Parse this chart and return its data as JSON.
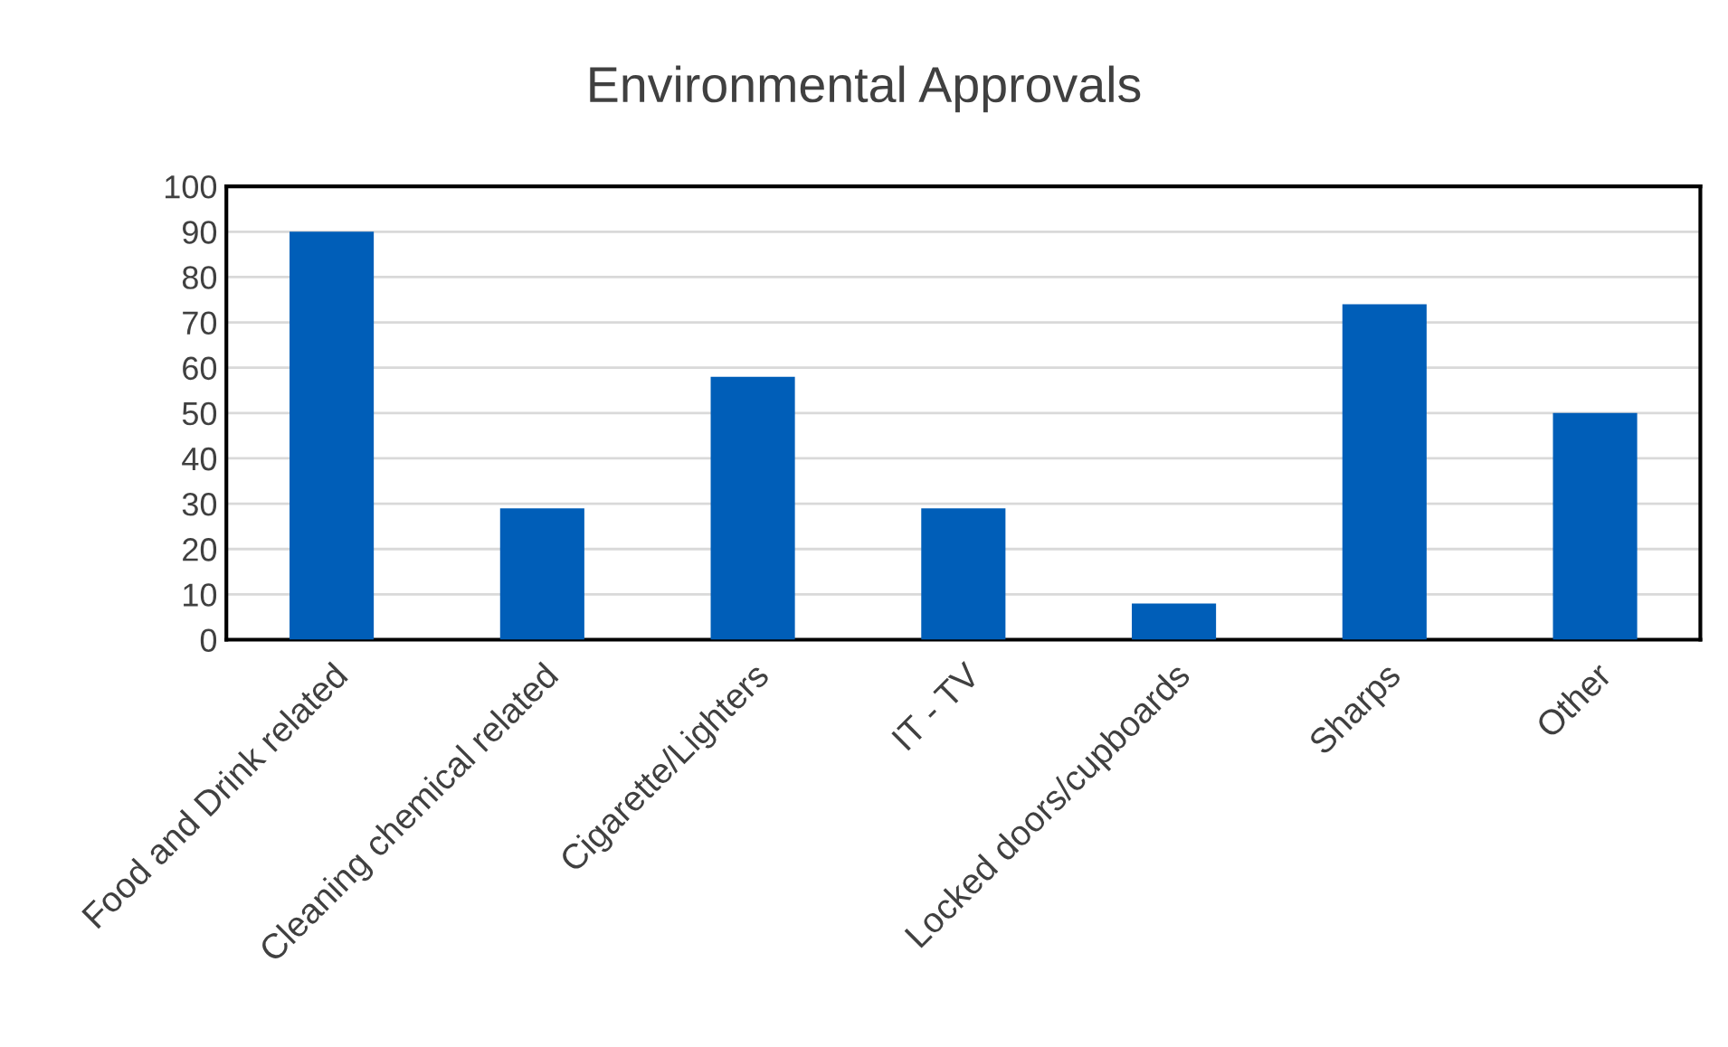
{
  "chart_data": {
    "type": "bar",
    "title": "Environmental Approvals",
    "categories": [
      "Food and Drink related",
      "Cleaning chemical related",
      "Cigarette/Lighters",
      "IT - TV",
      "Locked doors/cupboards",
      "Sharps",
      "Other"
    ],
    "values": [
      90,
      29,
      58,
      29,
      8,
      74,
      50
    ],
    "color": "#005eb8",
    "ylim": [
      0,
      100
    ],
    "yticks": [
      0,
      10,
      20,
      30,
      40,
      50,
      60,
      70,
      80,
      90,
      100
    ],
    "grid": "y",
    "legend": false
  }
}
